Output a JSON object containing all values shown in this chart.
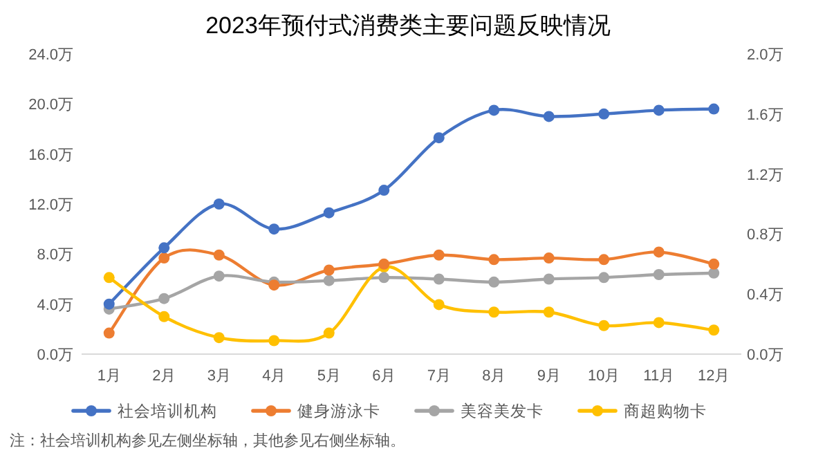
{
  "chart_data": {
    "type": "line",
    "title": "2023年预付式消费类主要问题反映情况",
    "categories": [
      "1月",
      "2月",
      "3月",
      "4月",
      "5月",
      "6月",
      "7月",
      "8月",
      "9月",
      "10月",
      "11月",
      "12月"
    ],
    "series": [
      {
        "name": "社会培训机构",
        "color": "#4472c4",
        "axis": "y",
        "values": [
          4.0,
          8.5,
          12.0,
          10.0,
          11.3,
          13.1,
          17.3,
          19.5,
          19.0,
          19.2,
          19.5,
          19.6
        ]
      },
      {
        "name": "健身游泳卡",
        "color": "#ed7d31",
        "axis": "y2",
        "values": [
          0.14,
          0.64,
          0.66,
          0.46,
          0.56,
          0.6,
          0.66,
          0.63,
          0.64,
          0.63,
          0.68,
          0.6
        ]
      },
      {
        "name": "美容美发卡",
        "color": "#a5a5a5",
        "axis": "y2",
        "values": [
          0.3,
          0.37,
          0.52,
          0.48,
          0.49,
          0.51,
          0.5,
          0.48,
          0.5,
          0.51,
          0.53,
          0.54
        ]
      },
      {
        "name": "商超购物卡",
        "color": "#ffc000",
        "axis": "y2",
        "values": [
          0.51,
          0.25,
          0.11,
          0.09,
          0.14,
          0.58,
          0.33,
          0.28,
          0.28,
          0.19,
          0.21,
          0.16
        ]
      }
    ],
    "ylim": [
      0,
      24
    ],
    "yticks": [
      {
        "value": 0,
        "label": "0.0万"
      },
      {
        "value": 4,
        "label": "4.0万"
      },
      {
        "value": 8,
        "label": "8.0万"
      },
      {
        "value": 12,
        "label": "12.0万"
      },
      {
        "value": 16,
        "label": "16.0万"
      },
      {
        "value": 20,
        "label": "20.0万"
      },
      {
        "value": 24,
        "label": "24.0万"
      }
    ],
    "y2lim": [
      0,
      2
    ],
    "y2ticks": [
      {
        "value": 0,
        "label": "0.0万"
      },
      {
        "value": 0.4,
        "label": "0.4万"
      },
      {
        "value": 0.8,
        "label": "0.8万"
      },
      {
        "value": 1.2,
        "label": "1.2万"
      },
      {
        "value": 1.6,
        "label": "1.6万"
      },
      {
        "value": 2,
        "label": "2.0万"
      }
    ],
    "grid": false,
    "legend": "bottom",
    "marker": "circle",
    "line_style": "solid",
    "annotations": [
      "注：社会培训机构参见左侧坐标轴，其他参见右侧坐标轴。"
    ]
  }
}
